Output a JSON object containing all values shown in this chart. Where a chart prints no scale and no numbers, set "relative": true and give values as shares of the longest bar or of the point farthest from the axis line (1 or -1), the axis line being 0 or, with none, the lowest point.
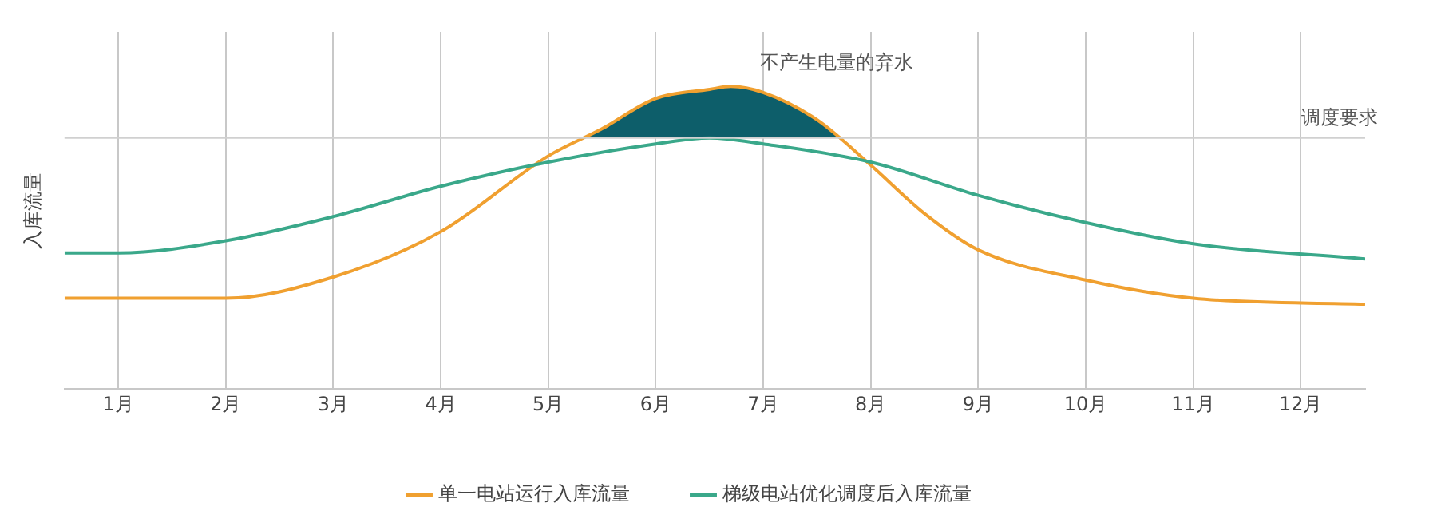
{
  "chart_data": {
    "type": "line",
    "relative": true,
    "ylabel": "入库流量",
    "xlim": [
      0.5,
      12.6
    ],
    "xticks": [
      {
        "value": 1,
        "label": "1月"
      },
      {
        "value": 2,
        "label": "2月"
      },
      {
        "value": 3,
        "label": "3月"
      },
      {
        "value": 4,
        "label": "4月"
      },
      {
        "value": 5,
        "label": "5月"
      },
      {
        "value": 6,
        "label": "6月"
      },
      {
        "value": 7,
        "label": "7月"
      },
      {
        "value": 8,
        "label": "8月"
      },
      {
        "value": 9,
        "label": "9月"
      },
      {
        "value": 10,
        "label": "10月"
      },
      {
        "value": 11,
        "label": "11月"
      },
      {
        "value": 12,
        "label": "12月"
      }
    ],
    "series": [
      {
        "name": "单一电站运行入库流量",
        "color": "#f0a030",
        "x": [
          0.5,
          2,
          3,
          4,
          5,
          5.5,
          6,
          6.5,
          6.7,
          7,
          7.5,
          8,
          8.5,
          9,
          10,
          11,
          12.6
        ],
        "values": [
          0.3,
          0.3,
          0.37,
          0.52,
          0.77,
          0.86,
          0.96,
          0.99,
          1,
          0.98,
          0.89,
          0.74,
          0.58,
          0.46,
          0.36,
          0.3,
          0.28
        ]
      },
      {
        "name": "梯级电站优化调度后入库流量",
        "color": "#3aa88a",
        "x": [
          0.5,
          1,
          2,
          3,
          4,
          5,
          6,
          6.5,
          7,
          8,
          9,
          10,
          11,
          12.6
        ],
        "values": [
          0.45,
          0.45,
          0.49,
          0.57,
          0.67,
          0.75,
          0.81,
          0.83,
          0.81,
          0.75,
          0.64,
          0.55,
          0.48,
          0.43
        ]
      }
    ],
    "ref_lines": [
      {
        "axis": "y",
        "value": 0.83,
        "label": "调度要求",
        "color": "#d0d0d0"
      }
    ],
    "annotations": [
      {
        "text": "不产生电量的弃水",
        "x": 6.7,
        "y": 1
      }
    ],
    "grid": "x",
    "legend": "bottom",
    "marker": "none",
    "line_style": "solid"
  }
}
